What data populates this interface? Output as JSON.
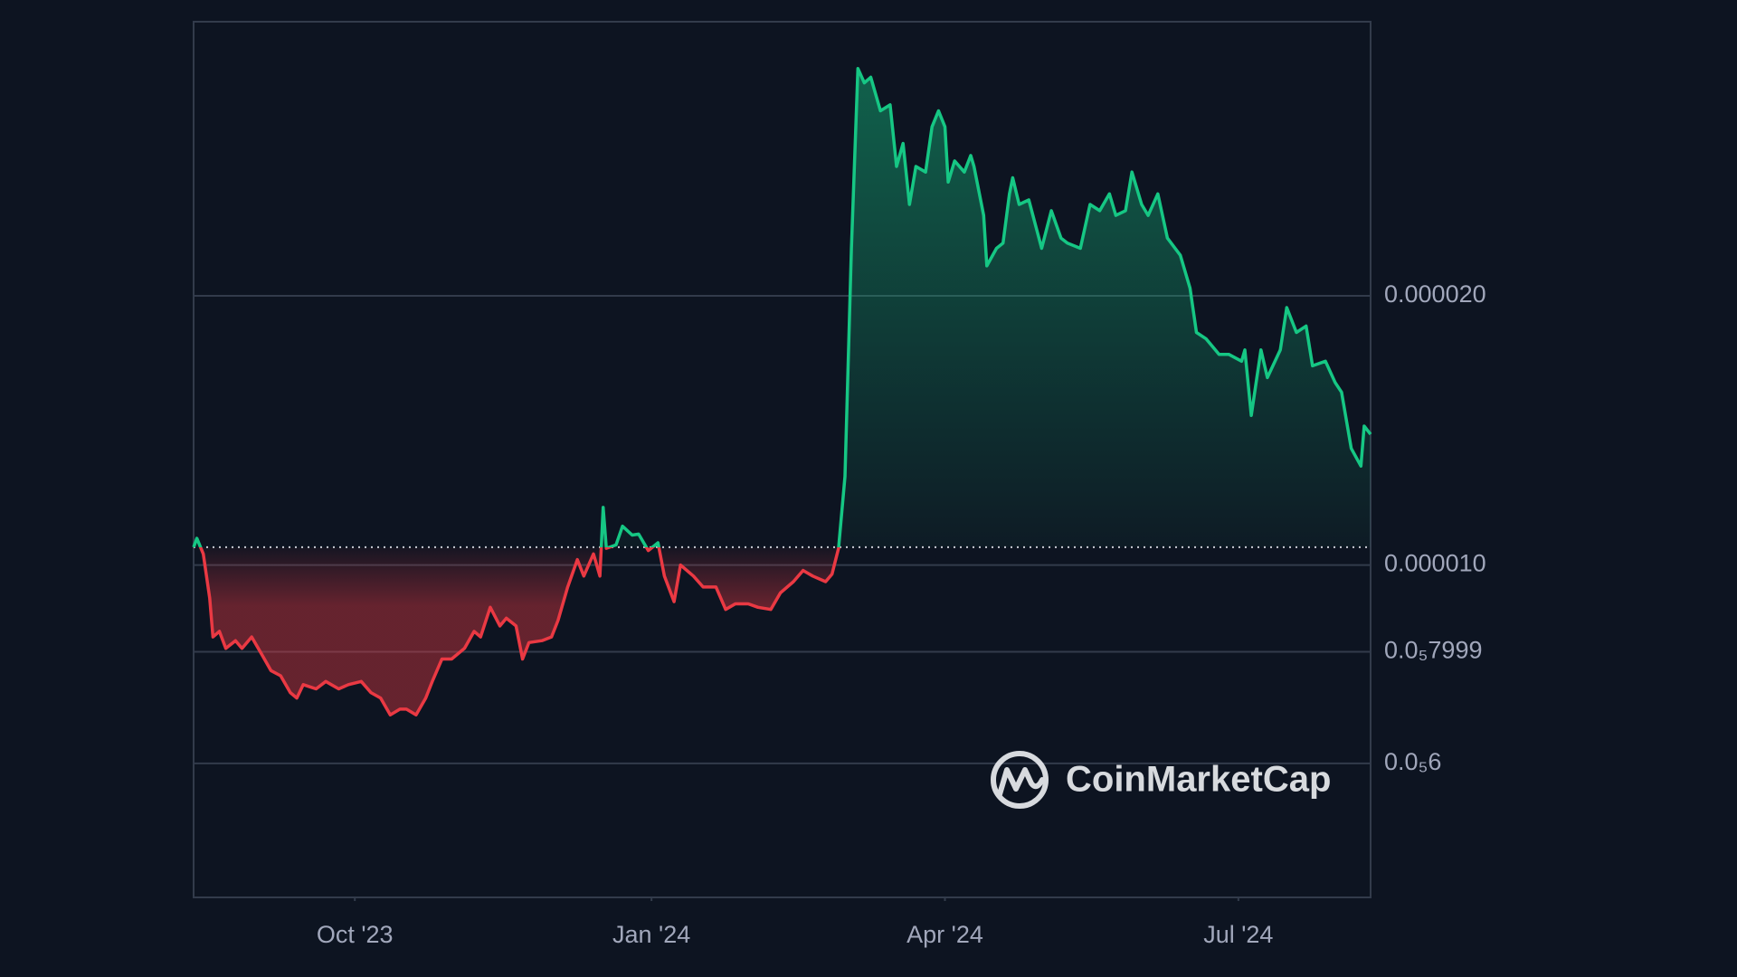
{
  "chart_data": {
    "type": "line",
    "watermark": "CoinMarketCap",
    "log_scale": true,
    "grid": true,
    "baseline": 1.047e-05,
    "up_color": "#16c784",
    "down_color": "#ea3943",
    "xlim": [
      0,
      365
    ],
    "xticks": [
      {
        "value": 50,
        "label": "Oct '23"
      },
      {
        "value": 142,
        "label": "Jan '24"
      },
      {
        "value": 233,
        "label": "Apr '24"
      },
      {
        "value": 324,
        "label": "Jul '24"
      }
    ],
    "ylim": [
      4.25e-06,
      4.05e-05
    ],
    "yticks": [
      {
        "value": 2e-05,
        "label": "0.000020"
      },
      {
        "value": 1e-05,
        "label": "0.000010"
      },
      {
        "value": 7.999e-06,
        "label": "0.0₅7999"
      },
      {
        "value": 6e-06,
        "label": "0.0₅6"
      }
    ],
    "series": [
      {
        "x": [
          0,
          1,
          3,
          5,
          6,
          8,
          10,
          13,
          15,
          18,
          21,
          24,
          27,
          30,
          32,
          34,
          38,
          41,
          45,
          48,
          52,
          55,
          58,
          61,
          64,
          66,
          69,
          72,
          74,
          77,
          80,
          84,
          87,
          89,
          92,
          95,
          97,
          100,
          102,
          104,
          108,
          111,
          113,
          116,
          119,
          121,
          124,
          126,
          127,
          128,
          131,
          133,
          136,
          138,
          141,
          144,
          146,
          149,
          151,
          155,
          158,
          162,
          165,
          168,
          172,
          175,
          179,
          182,
          186,
          189,
          192,
          196,
          198,
          200,
          202,
          204,
          206,
          208,
          210,
          213,
          216,
          218,
          220,
          222,
          224,
          227,
          229,
          231,
          233,
          234,
          236,
          239,
          241,
          242,
          245,
          246,
          249,
          251,
          253,
          254,
          256,
          259,
          263,
          266,
          269,
          271,
          275,
          278,
          281,
          284,
          286,
          289,
          291,
          294,
          296,
          299,
          302,
          306,
          309,
          311,
          314,
          318,
          321,
          325,
          326,
          328,
          331,
          333,
          337,
          339,
          342,
          345,
          347,
          351,
          354,
          356,
          359,
          362,
          363,
          365
        ],
        "values": [
          1.047e-05,
          1.071e-05,
          1.029e-05,
          9.18e-06,
          8.31e-06,
          8.43e-06,
          8.07e-06,
          8.23e-06,
          8.07e-06,
          8.31e-06,
          7.96e-06,
          7.62e-06,
          7.52e-06,
          7.2e-06,
          7.1e-06,
          7.35e-06,
          7.27e-06,
          7.41e-06,
          7.27e-06,
          7.35e-06,
          7.41e-06,
          7.2e-06,
          7.1e-06,
          6.8e-06,
          6.9e-06,
          6.9e-06,
          6.8e-06,
          7.1e-06,
          7.41e-06,
          7.85e-06,
          7.85e-06,
          8.07e-06,
          8.43e-06,
          8.31e-06,
          8.97e-06,
          8.55e-06,
          8.72e-06,
          8.55e-06,
          7.85e-06,
          8.19e-06,
          8.23e-06,
          8.31e-06,
          8.67e-06,
          9.45e-06,
          1.014e-05,
          9.72e-06,
          1.029e-05,
          9.72e-06,
          1.16e-05,
          1.044e-05,
          1.053e-05,
          1.105e-05,
          1.08e-05,
          1.083e-05,
          1.038e-05,
          1.059e-05,
          9.72e-06,
          9.1e-06,
          1e-05,
          9.72e-06,
          9.45e-06,
          9.45e-06,
          8.92e-06,
          9.05e-06,
          9.05e-06,
          8.97e-06,
          8.92e-06,
          9.31e-06,
          9.58e-06,
          9.86e-06,
          9.72e-06,
          9.58e-06,
          9.77e-06,
          1.044e-05,
          1.256e-05,
          2.256e-05,
          3.59e-05,
          3.46e-05,
          3.51e-05,
          3.22e-05,
          3.27e-05,
          2.79e-05,
          2.96e-05,
          2.53e-05,
          2.79e-05,
          2.75e-05,
          3.09e-05,
          3.22e-05,
          3.09e-05,
          2.68e-05,
          2.83e-05,
          2.75e-05,
          2.87e-05,
          2.79e-05,
          2.46e-05,
          2.16e-05,
          2.26e-05,
          2.29e-05,
          2.6e-05,
          2.71e-05,
          2.53e-05,
          2.56e-05,
          2.26e-05,
          2.49e-05,
          2.32e-05,
          2.29e-05,
          2.26e-05,
          2.53e-05,
          2.49e-05,
          2.6e-05,
          2.46e-05,
          2.49e-05,
          2.75e-05,
          2.53e-05,
          2.46e-05,
          2.6e-05,
          2.32e-05,
          2.22e-05,
          2.04e-05,
          1.82e-05,
          1.79e-05,
          1.72e-05,
          1.72e-05,
          1.69e-05,
          1.74e-05,
          1.47e-05,
          1.74e-05,
          1.62e-05,
          1.74e-05,
          1.94e-05,
          1.82e-05,
          1.85e-05,
          1.67e-05,
          1.69e-05,
          1.6e-05,
          1.56e-05,
          1.35e-05,
          1.29e-05,
          1.43e-05,
          1.4e-05
        ]
      }
    ]
  }
}
